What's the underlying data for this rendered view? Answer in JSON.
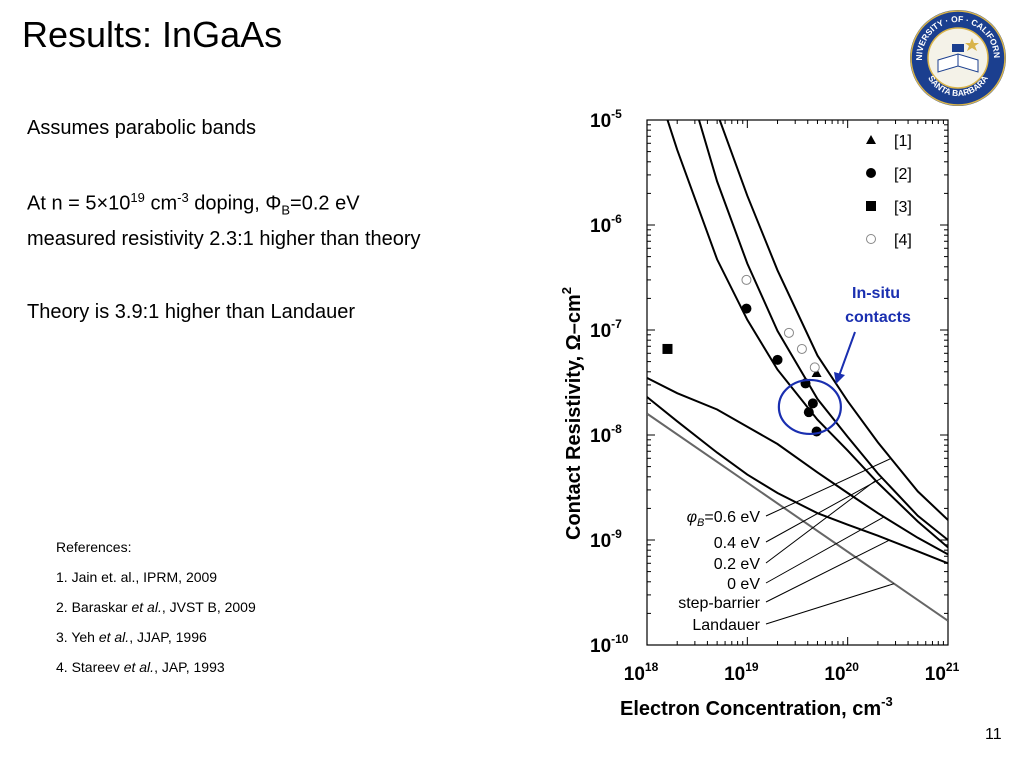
{
  "slide": {
    "title": "Results: InGaAs",
    "page_number": "11",
    "bullets": {
      "line1": "Assumes  parabolic bands",
      "line2_pre": "At n = 5×10",
      "line2_exp": "19",
      "line2_unit": " cm",
      "line2_unit_exp": "-3",
      "line2_mid": "  doping, Φ",
      "line2_sub": "B",
      "line2_post": "=0.2 eV",
      "line3": "measured resistivity 2.3:1 higher than theory",
      "line4": "Theory is 3.9:1 higher than  Landauer"
    },
    "references": {
      "heading": "References:",
      "items": [
        {
          "pre": "1. Jain et. al., IPRM, 2009",
          "em": "",
          "post": ""
        },
        {
          "pre": "2. Baraskar ",
          "em": "et al.",
          "post": ", JVST B, 2009"
        },
        {
          "pre": "3. Yeh ",
          "em": "et al.",
          "post": ", JJAP, 1996"
        },
        {
          "pre": "4. Stareev ",
          "em": "et al.",
          "post": ", JAP, 1993"
        }
      ]
    },
    "logo": {
      "top_text": "UNIVERSITY · OF · CALIFORNIA",
      "bottom_text": "SANTA BARBARA",
      "colors": {
        "ring": "#1b3f8f",
        "gold": "#d9b44a"
      }
    }
  },
  "chart_data": {
    "type": "scatter",
    "xlabel": "Electron Concentration, cm",
    "xlabel_exp": "-3",
    "ylabel": "Contact Resistivity, Ω–cm",
    "ylabel_exp": "2",
    "x_scale": "log",
    "y_scale": "log",
    "xlim": [
      1e+18,
      1e+21
    ],
    "ylim": [
      1e-10,
      1e-05
    ],
    "x_ticks": [
      {
        "base": "10",
        "exp": "18"
      },
      {
        "base": "10",
        "exp": "19"
      },
      {
        "base": "10",
        "exp": "20"
      },
      {
        "base": "10",
        "exp": "21"
      }
    ],
    "y_ticks": [
      {
        "base": "10",
        "exp": "-5"
      },
      {
        "base": "10",
        "exp": "-6"
      },
      {
        "base": "10",
        "exp": "-7"
      },
      {
        "base": "10",
        "exp": "-8"
      },
      {
        "base": "10",
        "exp": "-9"
      },
      {
        "base": "10",
        "exp": "-10"
      }
    ],
    "grid": false,
    "legend_position": "top-right",
    "legend": [
      {
        "label": "[1]",
        "marker": "triangle"
      },
      {
        "label": "[2]",
        "marker": "filled-circle"
      },
      {
        "label": "[3]",
        "marker": "square"
      },
      {
        "label": "[4]",
        "marker": "open-circle"
      }
    ],
    "points": [
      {
        "series": "[1]",
        "x": 4.9e+19,
        "y": 3.9e-08
      },
      {
        "series": "[2]",
        "x": 9.8e+18,
        "y": 1.6e-07
      },
      {
        "series": "[2]",
        "x": 2e+19,
        "y": 5.2e-08
      },
      {
        "series": "[2]",
        "x": 3.8e+19,
        "y": 3.1e-08
      },
      {
        "series": "[2]",
        "x": 4.5e+19,
        "y": 2e-08
      },
      {
        "series": "[2]",
        "x": 4.1e+19,
        "y": 1.65e-08
      },
      {
        "series": "[2]",
        "x": 4.9e+19,
        "y": 1.08e-08
      },
      {
        "series": "[3]",
        "x": 1.6e+18,
        "y": 6.6e-08
      },
      {
        "series": "[4]",
        "x": 9.8e+18,
        "y": 3e-07
      },
      {
        "series": "[4]",
        "x": 2.6e+19,
        "y": 9.4e-08
      },
      {
        "series": "[4]",
        "x": 3.5e+19,
        "y": 6.6e-08
      },
      {
        "series": "[4]",
        "x": 4.7e+19,
        "y": 4.4e-08
      }
    ],
    "curves": [
      {
        "name": "φB=0.6 eV",
        "color": "#000000",
        "x": [
          5.3e+18,
          1e+19,
          2e+19,
          5e+19,
          1e+20,
          2e+20,
          5e+20,
          1e+21
        ],
        "y": [
          1e-05,
          1.9e-06,
          3.7e-07,
          5.7e-08,
          2.1e-08,
          8.5e-09,
          2.9e-09,
          1.55e-09
        ]
      },
      {
        "name": "0.4 eV",
        "color": "#000000",
        "x": [
          3.3e+18,
          5e+18,
          1e+19,
          2e+19,
          5e+19,
          1e+20,
          2e+20,
          5e+20,
          1e+21
        ],
        "y": [
          1e-05,
          2.6e-06,
          4.3e-07,
          9.8e-08,
          2.2e-08,
          9.6e-09,
          4.3e-09,
          1.7e-09,
          1e-09
        ]
      },
      {
        "name": "0.2 eV",
        "color": "#000000",
        "x": [
          1.6e+18,
          2e+18,
          5e+18,
          1e+19,
          2e+19,
          5e+19,
          1e+20,
          2e+20,
          5e+20,
          1e+21
        ],
        "y": [
          1e-05,
          5.2e-06,
          4.7e-07,
          1.25e-07,
          4.2e-08,
          1.4e-08,
          7.1e-09,
          3.5e-09,
          1.5e-09,
          8.5e-10
        ]
      },
      {
        "name": "0 eV",
        "color": "#000000",
        "x": [
          1e+18,
          2e+18,
          5e+18,
          1e+19,
          2e+19,
          5e+19,
          1e+20,
          2e+20,
          5e+20,
          1e+21
        ],
        "y": [
          3.5e-08,
          2.5e-08,
          1.75e-08,
          1.2e-08,
          8.2e-09,
          4.4e-09,
          2.8e-09,
          1.8e-09,
          1.05e-09,
          7.3e-10
        ]
      },
      {
        "name": "step-barrier",
        "color": "#000000",
        "x": [
          1e+18,
          2e+18,
          5e+18,
          1e+19,
          2e+19,
          5e+19,
          1e+20,
          2e+20,
          5e+20,
          1e+21
        ],
        "y": [
          2.3e-08,
          1.35e-08,
          6.8e-09,
          4.2e-09,
          2.8e-09,
          1.8e-09,
          1.4e-09,
          1.1e-09,
          7.8e-10,
          6e-10
        ]
      },
      {
        "name": "Landauer",
        "color": "#666666",
        "x": [
          1e+18,
          1e+21
        ],
        "y": [
          1.6e-08,
          1.7e-10
        ]
      }
    ],
    "curve_labels": [
      {
        "pre": "φ",
        "sub": "B",
        "post": "=0.6 eV",
        "curve": "φB=0.6 eV"
      },
      {
        "pre": "0.4 eV",
        "sub": "",
        "post": "",
        "curve": "0.4 eV"
      },
      {
        "pre": "0.2 eV",
        "sub": "",
        "post": "",
        "curve": "0.2 eV"
      },
      {
        "pre": "0 eV",
        "sub": "",
        "post": "",
        "curve": "0 eV"
      },
      {
        "pre": "step-barrier",
        "sub": "",
        "post": "",
        "curve": "step-barrier"
      },
      {
        "pre": "Landauer",
        "sub": "",
        "post": "",
        "curve": "Landauer"
      }
    ],
    "annotations": [
      {
        "text_line1": "In-situ",
        "text_line2": "contacts",
        "color": "#1a2fb0",
        "shape": "ellipse",
        "center_x": 4.2e+19,
        "center_y": 1.85e-08
      }
    ]
  }
}
